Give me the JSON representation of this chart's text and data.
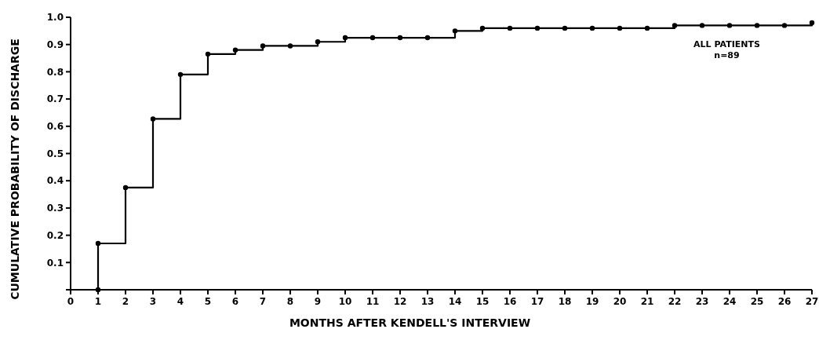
{
  "chart_data": {
    "type": "step",
    "xlabel": "MONTHS AFTER KENDELL'S INTERVIEW",
    "ylabel": "CUMULATIVE PROBABILITY OF DISCHARGE",
    "x": [
      1,
      1,
      2,
      3,
      4,
      5,
      6,
      7,
      8,
      9,
      10,
      11,
      12,
      13,
      14,
      15,
      16,
      17,
      18,
      19,
      20,
      21,
      22,
      23,
      24,
      25,
      26,
      27
    ],
    "series": [
      {
        "color": "#000000",
        "values": [
          0,
          0.17,
          0.375,
          0.627,
          0.79,
          0.865,
          0.88,
          0.895,
          0.895,
          0.91,
          0.925,
          0.925,
          0.925,
          0.925,
          0.95,
          0.96,
          0.96,
          0.96,
          0.96,
          0.96,
          0.96,
          0.96,
          0.97,
          0.97,
          0.97,
          0.97,
          0.97,
          0.98
        ]
      }
    ],
    "xlim": [
      0,
      27
    ],
    "xticks": [
      0,
      1,
      2,
      3,
      4,
      5,
      6,
      7,
      8,
      9,
      10,
      11,
      12,
      13,
      14,
      15,
      16,
      17,
      18,
      19,
      20,
      21,
      22,
      23,
      24,
      25,
      26,
      27
    ],
    "ylim": [
      0,
      1
    ],
    "yticks": [
      {
        "value": 0,
        "label": null
      },
      0.1,
      0.2,
      0.3,
      0.4,
      0.5,
      0.6,
      0.7,
      0.8,
      0.9,
      {
        "value": 1,
        "label": "1.0"
      }
    ],
    "marker": "circle",
    "line_style": "solid",
    "grid": false,
    "annotations": [
      "ALL PATIENTS",
      "n=89"
    ]
  }
}
